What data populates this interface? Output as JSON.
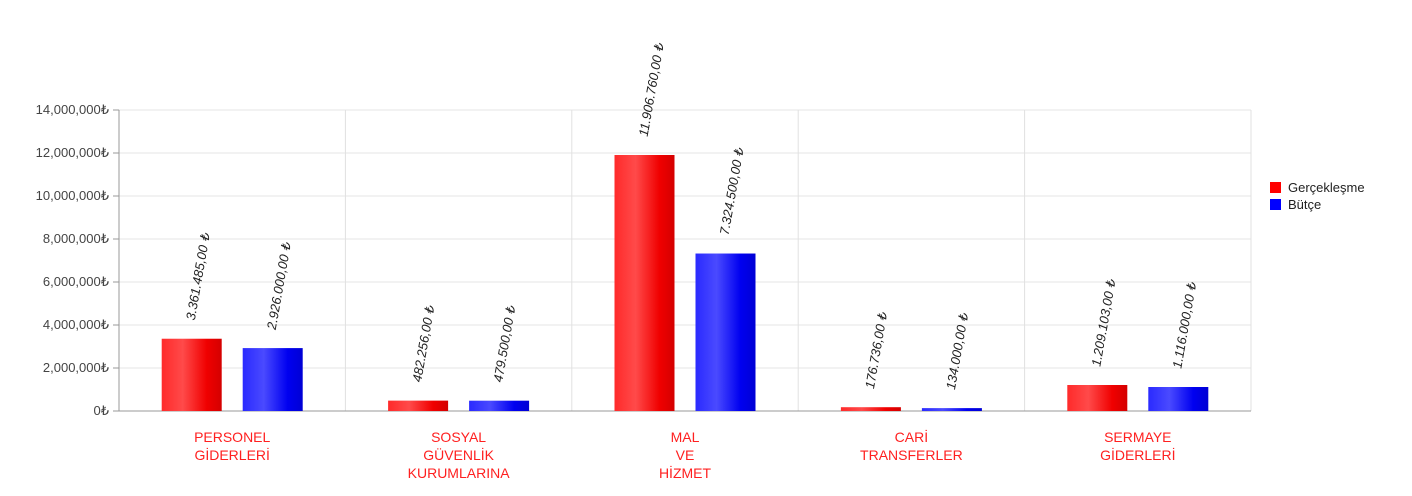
{
  "chart_data": {
    "type": "bar",
    "categories": [
      [
        "PERSONEL",
        "GİDERLERİ"
      ],
      [
        "SOSYAL",
        "GÜVENLİK",
        "KURUMLARINA"
      ],
      [
        "MAL",
        "VE",
        "HİZMET"
      ],
      [
        "CARİ",
        "TRANSFERLER"
      ],
      [
        "SERMAYE",
        "GİDERLERİ"
      ]
    ],
    "series": [
      {
        "name": "Gerçekleşme",
        "color": "#ff0000",
        "values": [
          3361485,
          482256,
          11906760,
          176736,
          1209103
        ],
        "labels": [
          "3.361.485,00 ₺",
          "482.256,00 ₺",
          "11.906.760,00 ₺",
          "176.736,00 ₺",
          "1.209.103,00 ₺"
        ]
      },
      {
        "name": "Bütçe",
        "color": "#0000ff",
        "values": [
          2926000,
          479500,
          7324500,
          134000,
          1116000
        ],
        "labels": [
          "2.926.000,00 ₺",
          "479.500,00 ₺",
          "7.324.500,00 ₺",
          "134.000,00 ₺",
          "1.116.000,00 ₺"
        ]
      }
    ],
    "ylim": [
      0,
      14000000
    ],
    "yticks": [
      0,
      2000000,
      4000000,
      6000000,
      8000000,
      10000000,
      12000000,
      14000000
    ],
    "ytick_labels": [
      "0₺",
      "2,000,000₺",
      "4,000,000₺",
      "6,000,000₺",
      "8,000,000₺",
      "10,000,000₺",
      "12,000,000₺",
      "14,000,000₺"
    ],
    "grid": true,
    "legend_position": "right",
    "title": "",
    "xlabel": "",
    "ylabel": ""
  }
}
